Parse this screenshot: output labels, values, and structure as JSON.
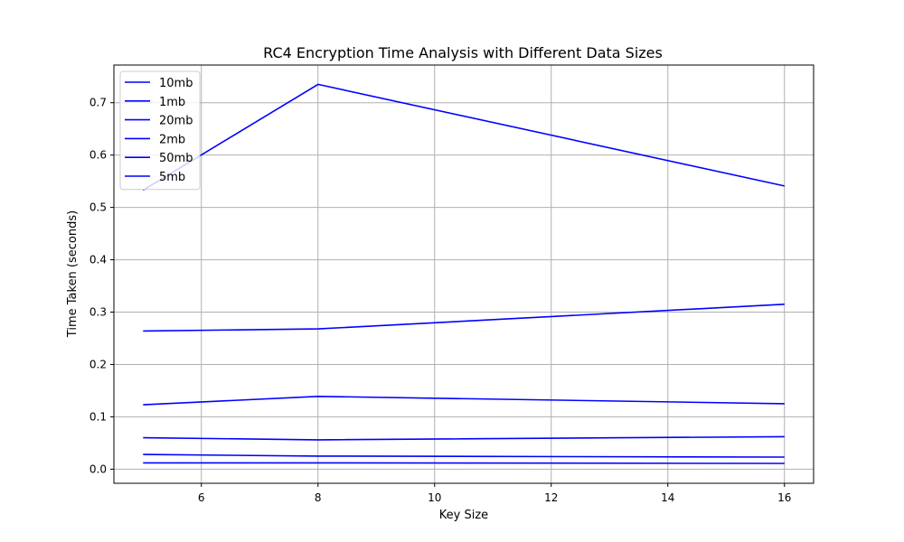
{
  "chart_data": {
    "type": "line",
    "title": "RC4 Encryption Time Analysis with Different Data Sizes",
    "xlabel": "Key Size",
    "ylabel": "Time Taken (seconds)",
    "x": [
      5,
      8,
      16
    ],
    "xlim": [
      4.5,
      16.5
    ],
    "ylim": [
      -0.027,
      0.772
    ],
    "xticks": [
      6,
      8,
      10,
      12,
      14,
      16
    ],
    "xtick_labels": [
      "6",
      "8",
      "10",
      "12",
      "14",
      "16"
    ],
    "yticks": [
      0.0,
      0.1,
      0.2,
      0.3,
      0.4,
      0.5,
      0.6,
      0.7
    ],
    "ytick_labels": [
      "0.0",
      "0.1",
      "0.2",
      "0.3",
      "0.4",
      "0.5",
      "0.6",
      "0.7"
    ],
    "grid": true,
    "legend_position": "top-left",
    "series": [
      {
        "name": "10mb",
        "color": "#0000ff",
        "values": [
          0.123,
          0.139,
          0.125
        ]
      },
      {
        "name": "1mb",
        "color": "#0000ff",
        "values": [
          0.012,
          0.012,
          0.011
        ]
      },
      {
        "name": "20mb",
        "color": "#0000ff",
        "values": [
          0.264,
          0.268,
          0.315
        ]
      },
      {
        "name": "2mb",
        "color": "#0000ff",
        "values": [
          0.028,
          0.025,
          0.023
        ]
      },
      {
        "name": "50mb",
        "color": "#0000ff",
        "values": [
          0.533,
          0.735,
          0.541
        ]
      },
      {
        "name": "5mb",
        "color": "#0000ff",
        "values": [
          0.06,
          0.056,
          0.062
        ]
      }
    ]
  }
}
